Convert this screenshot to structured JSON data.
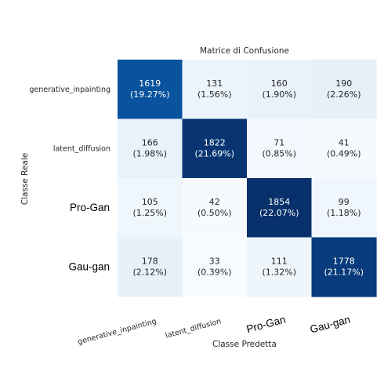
{
  "chart_data": {
    "type": "heatmap",
    "title": "Matrice di Confusione",
    "xlabel": "Classe Predetta",
    "ylabel": "Classe Reale",
    "row_labels": [
      "generative_inpainting",
      "latent_diffusion",
      "Pro-Gan",
      "Gau-gan"
    ],
    "col_labels": [
      "generative_inpainting",
      "latent_diffusion",
      "Pro-Gan",
      "Gau-gan"
    ],
    "values": [
      [
        1619,
        131,
        160,
        190
      ],
      [
        166,
        1822,
        71,
        41
      ],
      [
        105,
        42,
        1854,
        99
      ],
      [
        178,
        33,
        111,
        1778
      ]
    ],
    "percent_labels": [
      [
        "(19.27%)",
        "(1.56%)",
        "(1.90%)",
        "(2.26%)"
      ],
      [
        "(1.98%)",
        "(21.69%)",
        "(0.85%)",
        "(0.49%)"
      ],
      [
        "(1.25%)",
        "(0.50%)",
        "(22.07%)",
        "(1.18%)"
      ],
      [
        "(2.12%)",
        "(0.39%)",
        "(1.32%)",
        "(21.17%)"
      ]
    ],
    "colormap": "Blues",
    "grid": false,
    "legend": "none"
  }
}
